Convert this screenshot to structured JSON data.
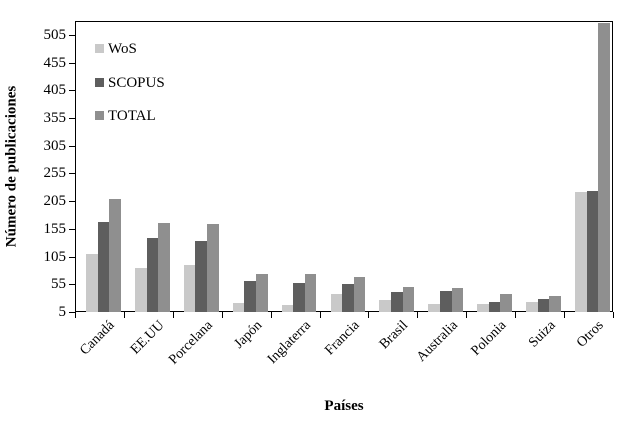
{
  "chart_data": {
    "type": "bar",
    "title": "",
    "xlabel": "Países",
    "ylabel": "Número de publicaciones",
    "categories": [
      "Canadá",
      "EE.UU",
      "Porcelana",
      "Japón",
      "Inglaterra",
      "Francia",
      "Brasil",
      "Australia",
      "Polonia",
      "Suiza",
      "Otros"
    ],
    "series": [
      {
        "name": "WoS",
        "color": "#c9c9c9",
        "values": [
          112,
          86,
          92,
          23,
          20,
          40,
          28,
          22,
          21,
          24,
          223
        ]
      },
      {
        "name": "SCOPUS",
        "color": "#5e5e5e",
        "values": [
          170,
          140,
          135,
          62,
          59,
          58,
          42,
          44,
          25,
          30,
          226
        ]
      },
      {
        "name": "TOTAL",
        "color": "#8f8f8f",
        "values": [
          210,
          168,
          165,
          75,
          75,
          70,
          52,
          51,
          40,
          36,
          528
        ]
      }
    ],
    "yticks": [
      5,
      55,
      105,
      155,
      205,
      255,
      305,
      355,
      405,
      455,
      505
    ],
    "ylim": [
      5,
      530
    ],
    "grid": false,
    "legend_position": "top-left",
    "axis_color": "#000000",
    "background_color": "#ffffff"
  }
}
